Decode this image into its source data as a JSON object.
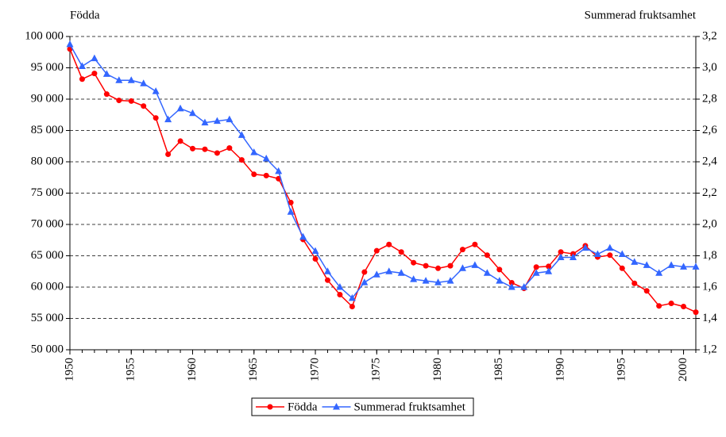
{
  "chart_data": {
    "type": "line",
    "y_label": "Födda",
    "y2_label": "Summerad fruktsamhet",
    "x": [
      1950,
      1951,
      1952,
      1953,
      1954,
      1955,
      1956,
      1957,
      1958,
      1959,
      1960,
      1961,
      1962,
      1963,
      1964,
      1965,
      1966,
      1967,
      1968,
      1969,
      1970,
      1971,
      1972,
      1973,
      1974,
      1975,
      1976,
      1977,
      1978,
      1979,
      1980,
      1981,
      1982,
      1983,
      1984,
      1985,
      1986,
      1987,
      1988,
      1989,
      1990,
      1991,
      1992,
      1993,
      1994,
      1995,
      1996,
      1997,
      1998,
      1999,
      2000,
      2001
    ],
    "xlim": [
      1950,
      2001
    ],
    "xticks": [
      1950,
      1955,
      1960,
      1965,
      1970,
      1975,
      1980,
      1985,
      1990,
      1995,
      2000
    ],
    "ylim": [
      50000,
      100000
    ],
    "yticks": [
      {
        "value": 50000,
        "label": "50 000"
      },
      {
        "value": 55000,
        "label": "55 000"
      },
      {
        "value": 60000,
        "label": "60 000"
      },
      {
        "value": 65000,
        "label": "65 000"
      },
      {
        "value": 70000,
        "label": "70 000"
      },
      {
        "value": 75000,
        "label": "75 000"
      },
      {
        "value": 80000,
        "label": "80 000"
      },
      {
        "value": 85000,
        "label": "85 000"
      },
      {
        "value": 90000,
        "label": "90 000"
      },
      {
        "value": 95000,
        "label": "95 000"
      },
      {
        "value": 100000,
        "label": "100 000"
      }
    ],
    "y2lim": [
      1.2,
      3.2
    ],
    "y2ticks": [
      {
        "value": 1.2,
        "label": "1,2"
      },
      {
        "value": 1.4,
        "label": "1,4"
      },
      {
        "value": 1.6,
        "label": "1,6"
      },
      {
        "value": 1.8,
        "label": "1,8"
      },
      {
        "value": 2.0,
        "label": "2,0"
      },
      {
        "value": 2.2,
        "label": "2,2"
      },
      {
        "value": 2.4,
        "label": "2,4"
      },
      {
        "value": 2.6,
        "label": "2,6"
      },
      {
        "value": 2.8,
        "label": "2,8"
      },
      {
        "value": 3.0,
        "label": "3,0"
      },
      {
        "value": 3.2,
        "label": "3,2"
      }
    ],
    "grid": true,
    "legend": "bottom",
    "series": [
      {
        "name": "Födda",
        "color": "#ff0000",
        "marker": "circle",
        "values": [
          98000,
          93200,
          94100,
          90800,
          89800,
          89700,
          88900,
          87000,
          81200,
          83300,
          82100,
          82000,
          81400,
          82200,
          80300,
          78000,
          77800,
          77300,
          73500,
          67600,
          64500,
          61100,
          58800,
          56900,
          62400,
          65800,
          66800,
          65600,
          63900,
          63400,
          63000,
          63400,
          66000,
          66800,
          65100,
          62800,
          60700,
          59800,
          63200,
          63300,
          65600,
          65300,
          66600,
          64800,
          65100,
          63000,
          60600,
          59400,
          57000,
          57400,
          56900,
          56000
        ]
      },
      {
        "name": "Summerad fruktsamhet",
        "color": "#3366ff",
        "marker": "triangle",
        "axis": "y2",
        "values": [
          3.15,
          3.01,
          3.06,
          2.96,
          2.92,
          2.92,
          2.9,
          2.85,
          2.67,
          2.74,
          2.71,
          2.65,
          2.66,
          2.67,
          2.57,
          2.46,
          2.42,
          2.34,
          2.08,
          1.92,
          1.83,
          1.7,
          1.6,
          1.53,
          1.63,
          1.68,
          1.7,
          1.69,
          1.65,
          1.64,
          1.63,
          1.64,
          1.72,
          1.74,
          1.69,
          1.64,
          1.6,
          1.6,
          1.69,
          1.7,
          1.79,
          1.79,
          1.85,
          1.81,
          1.85,
          1.81,
          1.76,
          1.74,
          1.69,
          1.74,
          1.73,
          1.73
        ]
      }
    ]
  }
}
